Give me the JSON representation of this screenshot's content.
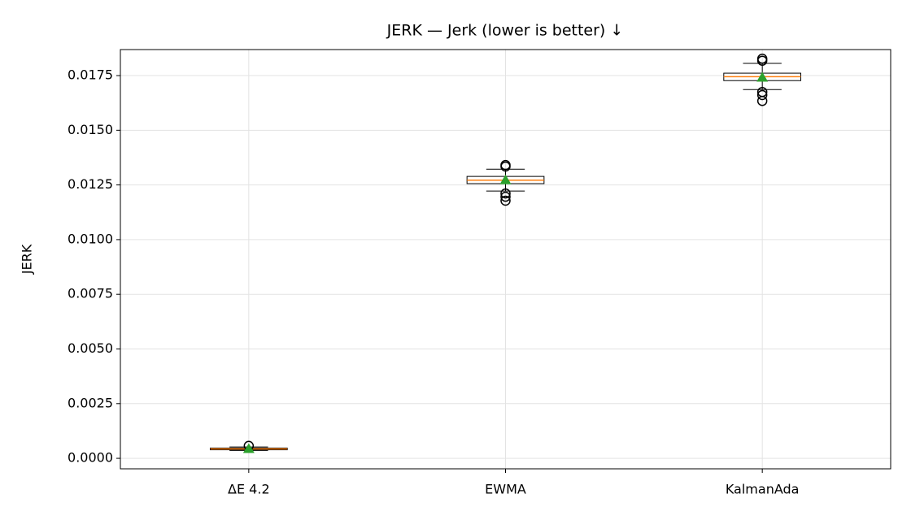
{
  "chart_data": {
    "type": "box",
    "title": "JERK — Jerk (lower is better) ↓",
    "y_label": "JERK",
    "categories": [
      "ΔE 4.2",
      "EWMA",
      "KalmanAda"
    ],
    "boxes": [
      {
        "whislo": 0.00036,
        "q1": 0.00039,
        "med": 0.00043,
        "q3": 0.00047,
        "whishi": 0.00052,
        "mean": 0.00043,
        "fliers": [
          0.00057
        ]
      },
      {
        "whislo": 0.01222,
        "q1": 0.01256,
        "med": 0.01272,
        "q3": 0.01289,
        "whishi": 0.01322,
        "mean": 0.01272,
        "fliers": [
          0.01341,
          0.01334,
          0.01211,
          0.01196,
          0.01178
        ]
      },
      {
        "whislo": 0.01686,
        "q1": 0.01727,
        "med": 0.01745,
        "q3": 0.01761,
        "whishi": 0.01806,
        "mean": 0.01741,
        "fliers": [
          0.01827,
          0.01818,
          0.01675,
          0.01661,
          0.01634
        ]
      }
    ],
    "box_color": "#000000",
    "median_color": "#ff7f0e",
    "mean_color": "#2ca02c",
    "ylim": [
      -0.00048,
      0.01869
    ],
    "yticks": [
      {
        "value": 0,
        "label": "0.0000"
      },
      {
        "value": 0.0025,
        "label": "0.0025"
      },
      {
        "value": 0.005,
        "label": "0.0050"
      },
      {
        "value": 0.0075,
        "label": "0.0075"
      },
      {
        "value": 0.01,
        "label": "0.0100"
      },
      {
        "value": 0.0125,
        "label": "0.0125"
      },
      {
        "value": 0.015,
        "label": "0.0150"
      },
      {
        "value": 0.0175,
        "label": "0.0175"
      }
    ],
    "grid": true
  }
}
